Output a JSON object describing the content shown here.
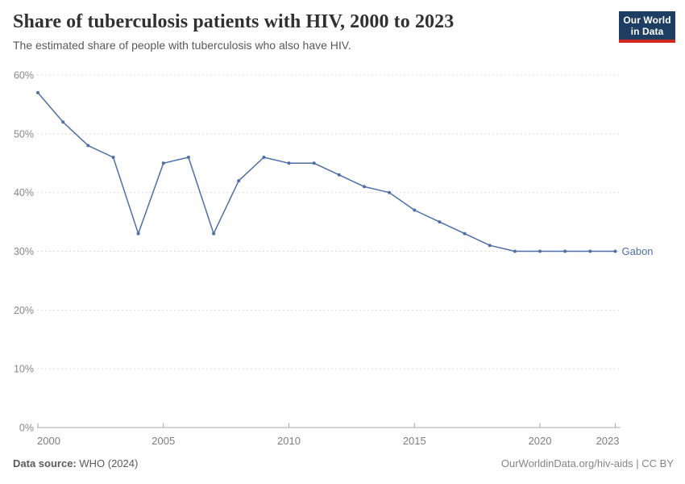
{
  "header": {
    "title": "Share of tuberculosis patients with HIV, 2000 to 2023",
    "subtitle": "The estimated share of people with tuberculosis who also have HIV.",
    "logo": {
      "line1": "Our World",
      "line2": "in Data"
    }
  },
  "chart_data": {
    "type": "line",
    "title": "Share of tuberculosis patients with HIV, 2000 to 2023",
    "xlabel": "",
    "ylabel": "",
    "x": [
      2000,
      2001,
      2002,
      2003,
      2004,
      2005,
      2006,
      2007,
      2008,
      2009,
      2010,
      2011,
      2012,
      2013,
      2014,
      2015,
      2016,
      2017,
      2018,
      2019,
      2020,
      2021,
      2022,
      2023
    ],
    "series": [
      {
        "name": "Gabon",
        "color": "#4e6ea7",
        "values": [
          57,
          52,
          48,
          46,
          33,
          45,
          46,
          33,
          42,
          46,
          45,
          45,
          43,
          41,
          40,
          37,
          35,
          33,
          31,
          30,
          30,
          30,
          30,
          30
        ]
      }
    ],
    "xlim": [
      2000,
      2023
    ],
    "ylim": [
      0,
      60
    ],
    "yticks": [
      0,
      10,
      20,
      30,
      40,
      50,
      60
    ],
    "ytick_suffix": "%",
    "xticks": [
      2000,
      2005,
      2010,
      2015,
      2020,
      2023
    ],
    "grid": true,
    "gridline_color": "#dcdcdc",
    "axis_color": "#a8a8a8",
    "tick_label_color": "#7d7d7d",
    "legend_position": "end-of-line-label"
  },
  "footer": {
    "datasource_label": "Data source:",
    "datasource_value": " WHO (2024)",
    "link": "OurWorldinData.org/hiv-aids",
    "separator": " | ",
    "license": "CC BY"
  }
}
